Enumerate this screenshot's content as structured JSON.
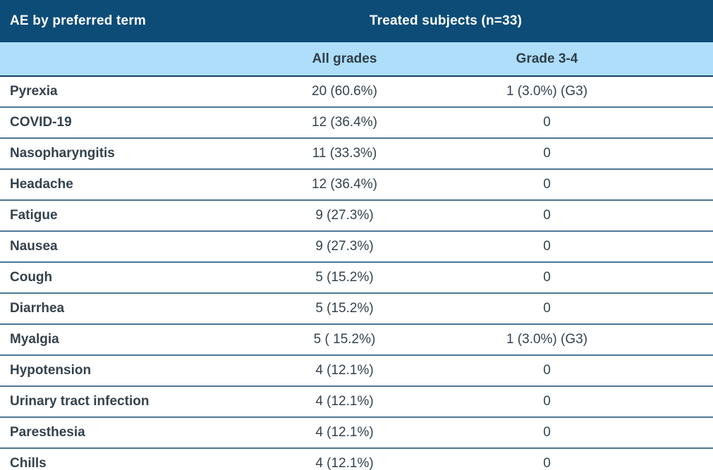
{
  "table": {
    "header": {
      "row_label_column": "AE by preferred term",
      "group": "Treated subjects (n=33)",
      "columns": [
        "All grades",
        "Grade 3-4"
      ]
    },
    "rows": [
      {
        "term": "Pyrexia",
        "all_grades": "20 (60.6%)",
        "grade_3_4": "1 (3.0%) (G3)"
      },
      {
        "term": "COVID-19",
        "all_grades": "12 (36.4%)",
        "grade_3_4": "0"
      },
      {
        "term": "Nasopharyngitis",
        "all_grades": "11 (33.3%)",
        "grade_3_4": "0"
      },
      {
        "term": "Headache",
        "all_grades": "12 (36.4%)",
        "grade_3_4": "0"
      },
      {
        "term": "Fatigue",
        "all_grades": "9 (27.3%)",
        "grade_3_4": "0"
      },
      {
        "term": "Nausea",
        "all_grades": "9 (27.3%)",
        "grade_3_4": "0"
      },
      {
        "term": "Cough",
        "all_grades": "5 (15.2%)",
        "grade_3_4": "0"
      },
      {
        "term": "Diarrhea",
        "all_grades": "5 (15.2%)",
        "grade_3_4": "0"
      },
      {
        "term": "Myalgia",
        "all_grades": "5 ( 15.2%)",
        "grade_3_4": "1 (3.0%) (G3)"
      },
      {
        "term": "Hypotension",
        "all_grades": "4 (12.1%)",
        "grade_3_4": "0"
      },
      {
        "term": "Urinary tract infection",
        "all_grades": "4 (12.1%)",
        "grade_3_4": "0"
      },
      {
        "term": "Paresthesia",
        "all_grades": "4 (12.1%)",
        "grade_3_4": "0"
      },
      {
        "term": "Chills",
        "all_grades": "4 (12.1%)",
        "grade_3_4": "0"
      }
    ],
    "colors": {
      "header_dark_bg": "#0d4c77",
      "header_light_bg": "#aedefa",
      "header_dark_text": "#ffffff",
      "body_text": "#35424d",
      "row_separator": "#4c7795",
      "bottom_bar": "#5a7c90"
    }
  }
}
